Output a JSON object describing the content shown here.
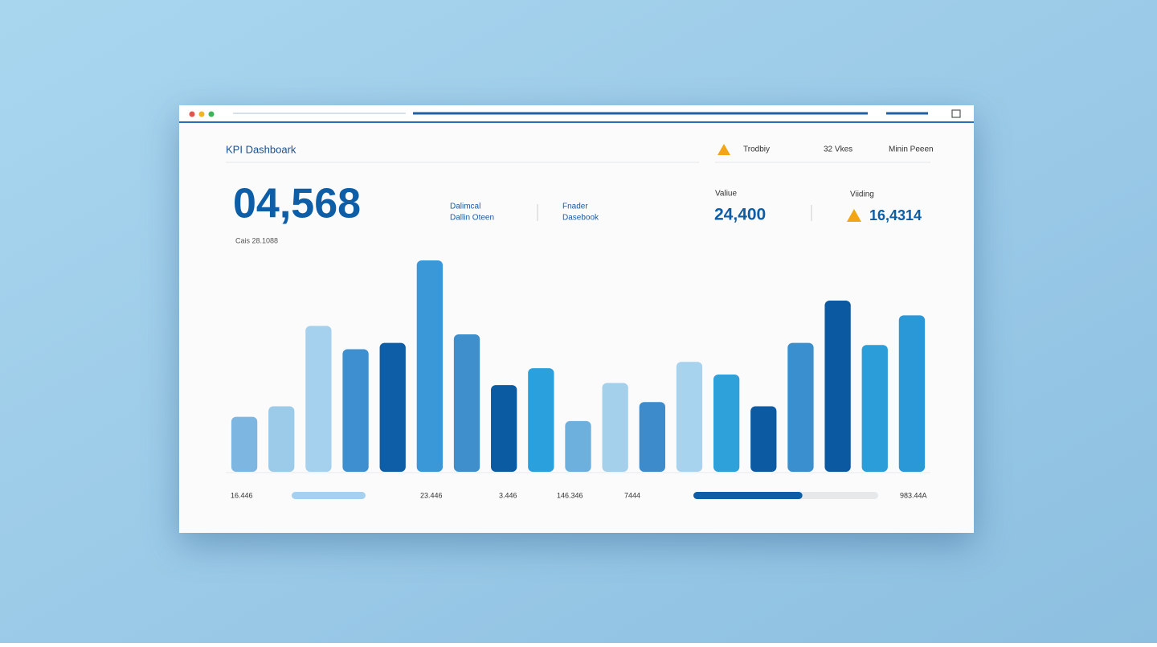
{
  "header": {
    "title": "KPI Dashboark",
    "tabs": [
      "Trodbiy",
      "32 Vkes",
      "Minin Peeen"
    ]
  },
  "kpi": {
    "main": {
      "value": "04,568",
      "caption": "Cais 28.1088"
    },
    "labels": [
      [
        "Dalimcal",
        "Dallin Oteen"
      ],
      [
        "Fnader",
        "Dasebook"
      ]
    ],
    "value": {
      "label": "Valiue",
      "value": "24,400"
    },
    "alert": {
      "label": "Viiding",
      "value": "16,4314"
    }
  },
  "chart_data": {
    "type": "bar",
    "values": [
      26,
      31,
      69,
      58,
      61,
      100,
      65,
      41,
      49,
      24,
      42,
      33,
      52,
      46,
      31,
      61,
      81,
      60,
      74
    ],
    "colors": [
      "#7db6e1",
      "#9ccbea",
      "#a6d1ee",
      "#3e8fcf",
      "#0d5ea6",
      "#3a98d8",
      "#3f8fcc",
      "#0b5ba3",
      "#2aa0dc",
      "#6eb0dd",
      "#a5d0ec",
      "#3d8bcb",
      "#a8d3ee",
      "#2ea1da",
      "#0c5ba2",
      "#3a90cf",
      "#0b5aa1",
      "#2b9dd9",
      "#2a97d6"
    ],
    "ylim": [
      0,
      100
    ]
  },
  "footer": {
    "labels": [
      "16.446",
      "23.446",
      "3.446",
      "146.346",
      "7444",
      "983.44A"
    ],
    "progress": 59
  }
}
